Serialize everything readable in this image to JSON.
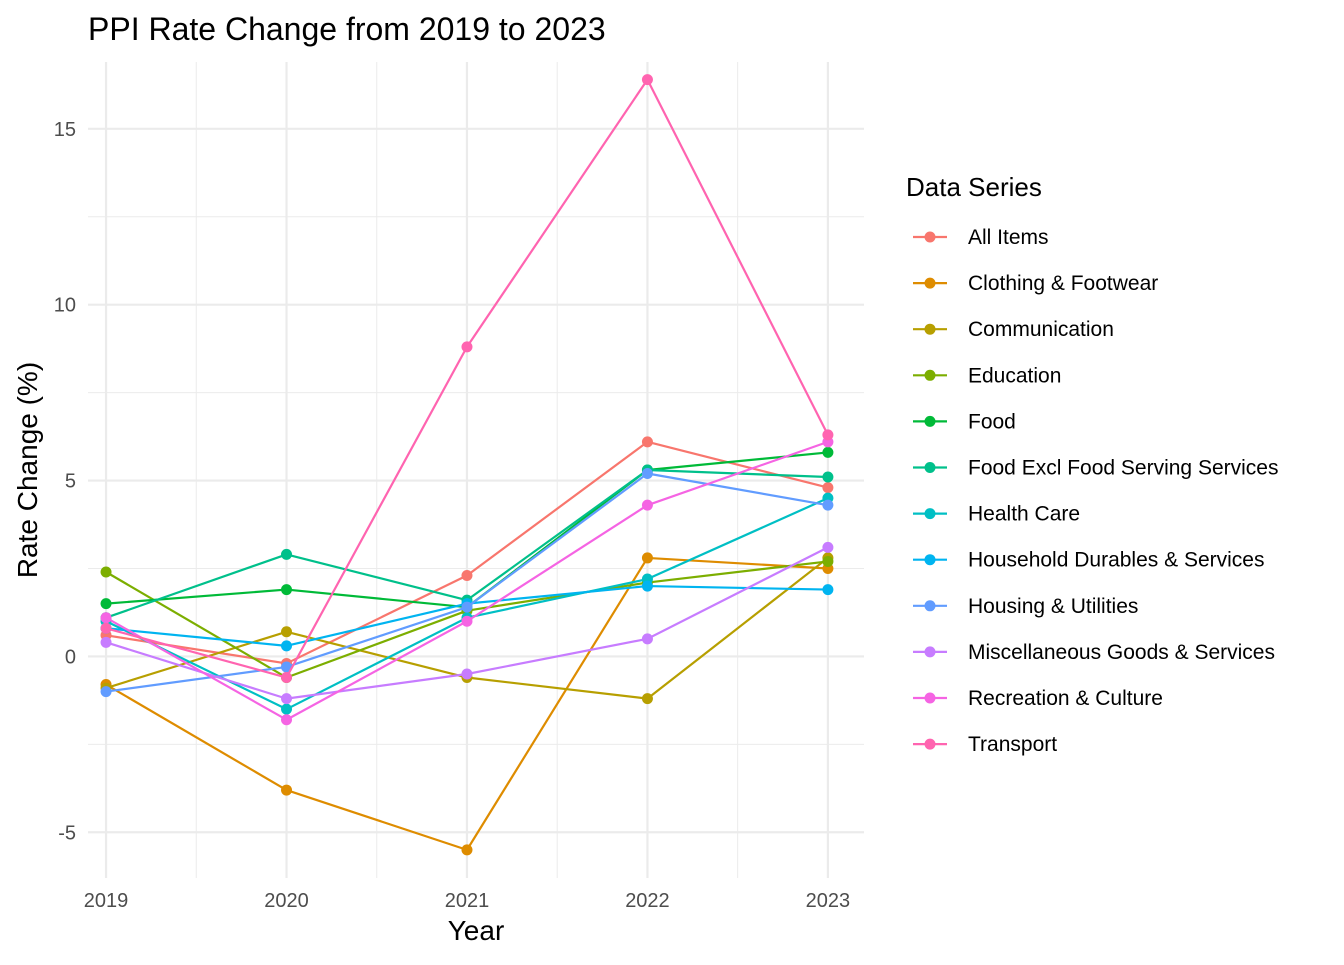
{
  "chart_data": {
    "type": "line",
    "title": "PPI Rate Change from 2019 to 2023",
    "xlabel": "Year",
    "ylabel": "Rate Change (%)",
    "x": [
      2019,
      2020,
      2021,
      2022,
      2023
    ],
    "xlim": [
      2018.9,
      2023.2
    ],
    "ylim": [
      -6.3,
      16.9
    ],
    "yticks": [
      -5,
      0,
      5,
      10,
      15
    ],
    "grid": true,
    "legend": {
      "title": "Data Series",
      "position": "right"
    },
    "series": [
      {
        "name": "All Items",
        "color": "#F8766D",
        "values": [
          0.6,
          -0.2,
          2.3,
          6.1,
          4.8
        ]
      },
      {
        "name": "Clothing & Footwear",
        "color": "#DE8C00",
        "values": [
          -0.8,
          -3.8,
          -5.5,
          2.8,
          2.5
        ]
      },
      {
        "name": "Communication",
        "color": "#B79F00",
        "values": [
          -0.9,
          0.7,
          -0.6,
          -1.2,
          2.8
        ]
      },
      {
        "name": "Education",
        "color": "#7CAE00",
        "values": [
          2.4,
          -0.6,
          1.3,
          2.1,
          2.7
        ]
      },
      {
        "name": "Food",
        "color": "#00BA38",
        "values": [
          1.5,
          1.9,
          1.4,
          5.3,
          5.8
        ]
      },
      {
        "name": "Food Excl Food Serving Services",
        "color": "#00C08B",
        "values": [
          1.1,
          2.9,
          1.6,
          5.3,
          5.1
        ]
      },
      {
        "name": "Health Care",
        "color": "#00BFC4",
        "values": [
          1.0,
          -1.5,
          1.1,
          2.2,
          4.5
        ]
      },
      {
        "name": "Household Durables & Services",
        "color": "#00B4F0",
        "values": [
          0.8,
          0.3,
          1.5,
          2.0,
          1.9
        ]
      },
      {
        "name": "Housing & Utilities",
        "color": "#619CFF",
        "values": [
          -1.0,
          -0.3,
          1.4,
          5.2,
          4.3
        ]
      },
      {
        "name": "Miscellaneous Goods & Services",
        "color": "#C77CFF",
        "values": [
          0.4,
          -1.2,
          -0.5,
          0.5,
          3.1
        ]
      },
      {
        "name": "Recreation & Culture",
        "color": "#F564E3",
        "values": [
          1.1,
          -1.8,
          1.0,
          4.3,
          6.1
        ]
      },
      {
        "name": "Transport",
        "color": "#FF64B0",
        "values": [
          0.8,
          -0.6,
          8.8,
          16.4,
          6.3
        ]
      }
    ]
  }
}
